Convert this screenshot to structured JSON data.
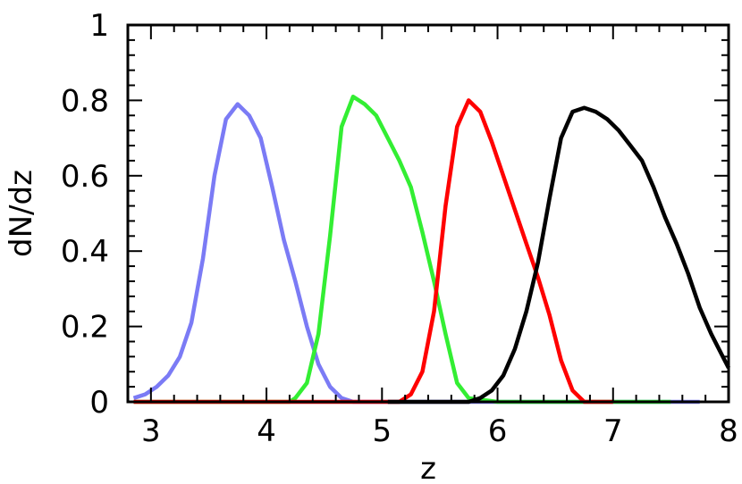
{
  "chart_data": {
    "type": "line",
    "xlabel": "z",
    "ylabel": "dN/dz",
    "xlim": [
      2.8,
      8.0
    ],
    "ylim": [
      0,
      1
    ],
    "grid": false,
    "x_ticks": [
      3,
      4,
      5,
      6,
      7,
      8
    ],
    "x_tick_labels": [
      "3",
      "4",
      "5",
      "6",
      "7",
      "8"
    ],
    "y_ticks": [
      0,
      0.2,
      0.4,
      0.6,
      0.8,
      1
    ],
    "y_tick_labels": [
      "0",
      "0.2",
      "0.4",
      "0.6",
      "0.8",
      "1"
    ],
    "series": [
      {
        "color": "#7b7bf5",
        "x": [
          2.85,
          2.95,
          3.05,
          3.15,
          3.25,
          3.35,
          3.45,
          3.55,
          3.65,
          3.75,
          3.85,
          3.95,
          4.05,
          4.15,
          4.25,
          4.35,
          4.45,
          4.55,
          4.65,
          4.75,
          4.9,
          5.2,
          5.6,
          6.0,
          6.4,
          6.8,
          7.2,
          7.5,
          7.75
        ],
        "y": [
          0.01,
          0.02,
          0.04,
          0.07,
          0.12,
          0.21,
          0.38,
          0.6,
          0.75,
          0.79,
          0.76,
          0.7,
          0.57,
          0.43,
          0.32,
          0.2,
          0.1,
          0.04,
          0.01,
          0.0,
          0.0,
          0.0,
          0.0,
          0.0,
          0.0,
          0.0,
          0.0,
          0.0,
          0.0
        ]
      },
      {
        "color": "#33ee33",
        "x": [
          2.85,
          3.5,
          4.0,
          4.2,
          4.25,
          4.35,
          4.45,
          4.55,
          4.65,
          4.75,
          4.85,
          4.95,
          5.05,
          5.15,
          5.25,
          5.35,
          5.45,
          5.55,
          5.65,
          5.75,
          6.0,
          6.5,
          7.0,
          7.5
        ],
        "y": [
          0.0,
          0.0,
          0.0,
          0.0,
          0.01,
          0.05,
          0.18,
          0.44,
          0.73,
          0.81,
          0.79,
          0.76,
          0.7,
          0.64,
          0.57,
          0.45,
          0.32,
          0.18,
          0.05,
          0.01,
          0.0,
          0.0,
          0.0,
          0.0
        ]
      },
      {
        "color": "#ff0000",
        "x": [
          2.85,
          4.0,
          5.0,
          5.15,
          5.25,
          5.35,
          5.45,
          5.55,
          5.65,
          5.75,
          5.85,
          5.95,
          6.05,
          6.15,
          6.25,
          6.35,
          6.45,
          6.55,
          6.65,
          6.75,
          6.85,
          7.0
        ],
        "y": [
          0.0,
          0.0,
          0.0,
          0.0,
          0.02,
          0.08,
          0.24,
          0.52,
          0.73,
          0.8,
          0.77,
          0.69,
          0.6,
          0.51,
          0.42,
          0.33,
          0.23,
          0.11,
          0.03,
          0.0,
          0.0,
          0.0
        ]
      },
      {
        "color": "#000000",
        "x": [
          5.05,
          5.55,
          5.75,
          5.85,
          5.95,
          6.05,
          6.15,
          6.25,
          6.35,
          6.45,
          6.55,
          6.65,
          6.75,
          6.85,
          6.95,
          7.05,
          7.15,
          7.25,
          7.35,
          7.45,
          7.55,
          7.65,
          7.75,
          7.85,
          7.95,
          8.0
        ],
        "y": [
          0.0,
          0.0,
          0.0,
          0.01,
          0.03,
          0.07,
          0.14,
          0.24,
          0.37,
          0.54,
          0.7,
          0.77,
          0.78,
          0.77,
          0.75,
          0.72,
          0.68,
          0.64,
          0.57,
          0.49,
          0.42,
          0.34,
          0.25,
          0.18,
          0.12,
          0.09
        ]
      }
    ]
  }
}
